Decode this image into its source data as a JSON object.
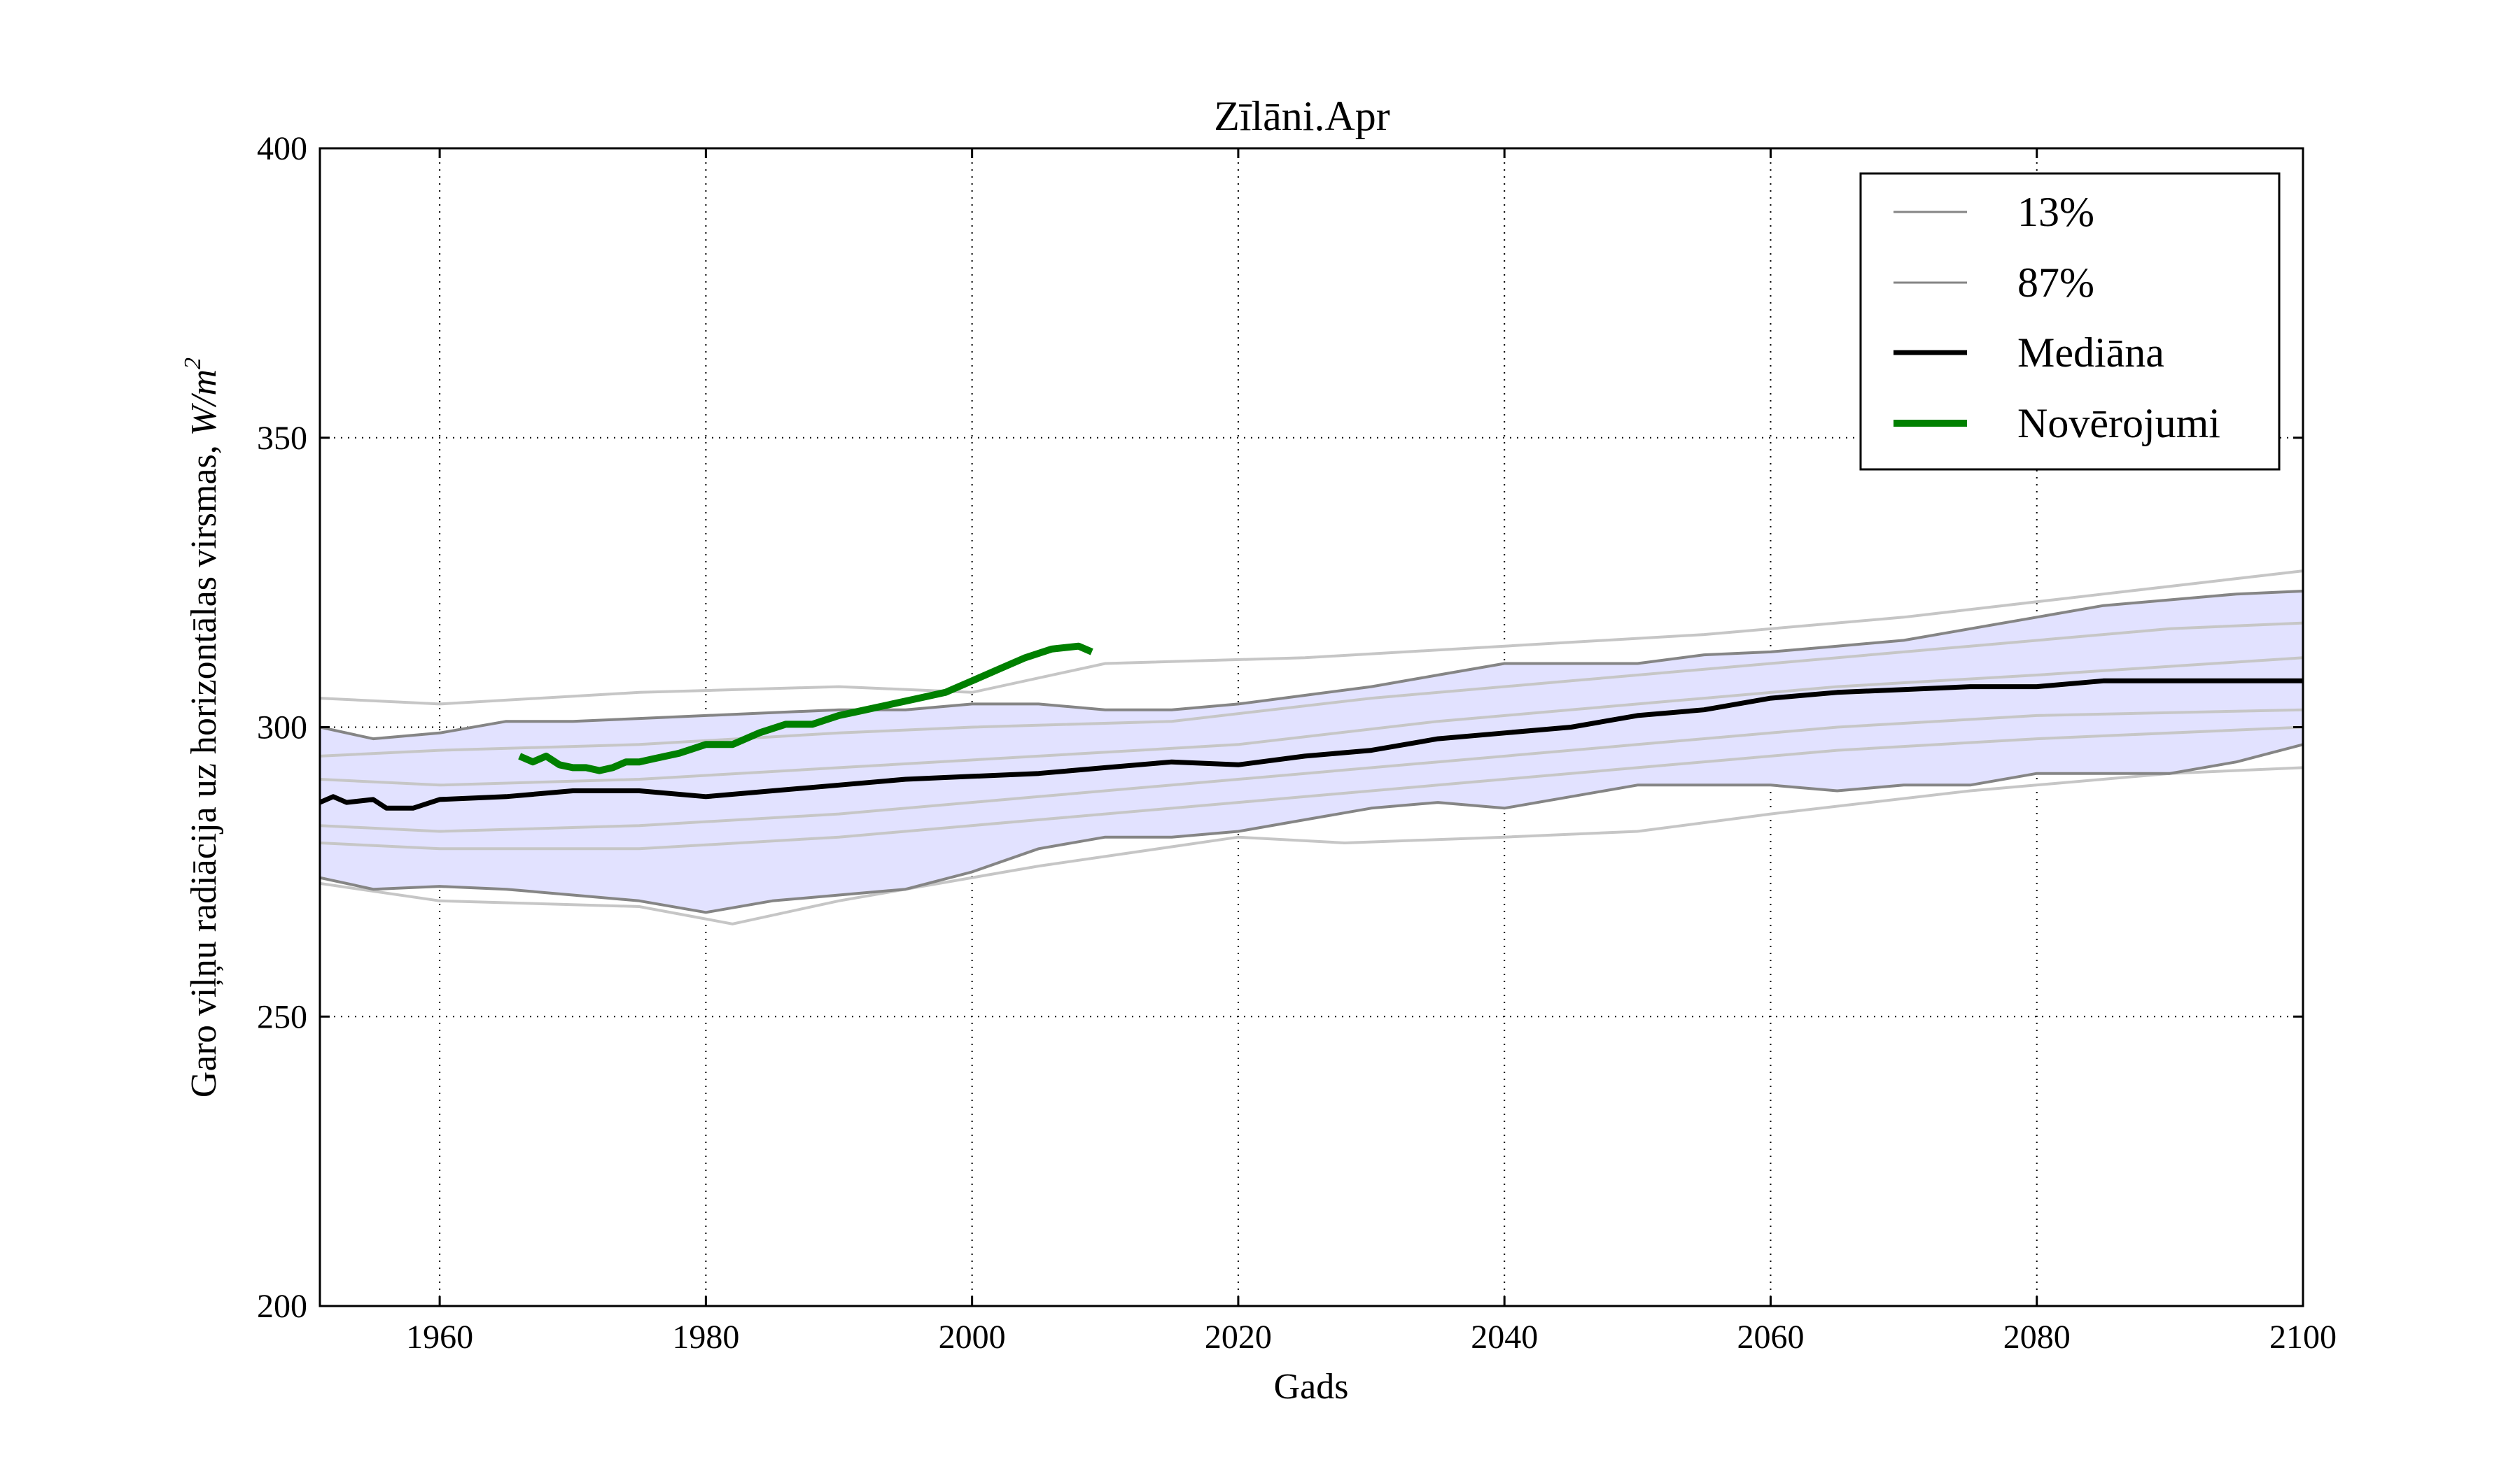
{
  "chart_data": {
    "type": "line",
    "title": "Zīlāni.Apr",
    "xlabel": "Gads",
    "ylabel_text": "Garo viļņu radiācija uz horizontālas virsmas, ",
    "ylabel_unit": "W/m",
    "ylabel_unit_power": "2",
    "xlim": [
      1951,
      2100
    ],
    "ylim": [
      200,
      400
    ],
    "xticks": [
      1960,
      1980,
      2000,
      2020,
      2040,
      2060,
      2080,
      2100
    ],
    "yticks": [
      200,
      250,
      300,
      350,
      400
    ],
    "grid": true,
    "legend_position": "top-right",
    "colors": {
      "band_fill": "#e2e2ff",
      "band_edge": "#858585",
      "ensemble": "#c6c6c6",
      "median": "#000000",
      "observations": "#008000"
    },
    "legend": [
      {
        "label": "13%",
        "style": "band_edge"
      },
      {
        "label": "87%",
        "style": "band_edge"
      },
      {
        "label": "Mediāna",
        "style": "median"
      },
      {
        "label": "Novērojumi",
        "style": "observations"
      }
    ],
    "series": [
      {
        "name": "13%",
        "x": [
          1951,
          1955,
          1960,
          1965,
          1970,
          1975,
          1980,
          1985,
          1990,
          1995,
          2000,
          2005,
          2010,
          2015,
          2020,
          2025,
          2030,
          2035,
          2040,
          2045,
          2050,
          2055,
          2060,
          2065,
          2070,
          2075,
          2080,
          2085,
          2090,
          2095,
          2100
        ],
        "values": [
          274,
          272,
          272.5,
          272,
          271,
          270,
          268,
          270,
          271,
          272,
          275,
          279,
          281,
          281,
          282,
          284,
          286,
          287,
          286,
          288,
          290,
          290,
          290,
          289,
          290,
          290,
          292,
          292,
          292,
          294,
          297
        ]
      },
      {
        "name": "87%",
        "x": [
          1951,
          1955,
          1960,
          1965,
          1970,
          1975,
          1980,
          1985,
          1990,
          1995,
          2000,
          2005,
          2010,
          2015,
          2020,
          2025,
          2030,
          2035,
          2040,
          2045,
          2050,
          2055,
          2060,
          2065,
          2070,
          2075,
          2080,
          2085,
          2090,
          2095,
          2100
        ],
        "values": [
          300,
          298,
          299,
          301,
          301,
          301.5,
          302,
          302.5,
          303,
          303,
          304,
          304,
          303,
          303,
          304,
          305.5,
          307,
          309,
          311,
          311,
          311,
          312.5,
          313,
          314,
          315,
          317,
          319,
          321,
          322,
          323,
          323.5
        ]
      },
      {
        "name": "Mediāna",
        "x": [
          1951,
          1952,
          1953,
          1955,
          1956,
          1958,
          1960,
          1965,
          1970,
          1975,
          1980,
          1985,
          1990,
          1995,
          2000,
          2005,
          2010,
          2015,
          2020,
          2025,
          2030,
          2035,
          2040,
          2045,
          2050,
          2055,
          2060,
          2065,
          2070,
          2075,
          2080,
          2085,
          2090,
          2095,
          2100
        ],
        "values": [
          287,
          288,
          287,
          287.5,
          286,
          286,
          287.5,
          288,
          289,
          289,
          288,
          289,
          290,
          291,
          291.5,
          292,
          293,
          294,
          293.5,
          295,
          296,
          298,
          299,
          300,
          302,
          303,
          305,
          306,
          306.5,
          307,
          307,
          308,
          308,
          308,
          308
        ]
      },
      {
        "name": "Novērojumi",
        "x": [
          1966,
          1967,
          1968,
          1969,
          1970,
          1971,
          1972,
          1973,
          1974,
          1975,
          1976,
          1978,
          1980,
          1982,
          1984,
          1986,
          1988,
          1990,
          1991,
          1992,
          1994,
          1996,
          1998,
          2000,
          2002,
          2004,
          2006,
          2008,
          2009
        ],
        "values": [
          295,
          294,
          295,
          293.5,
          293,
          293,
          292.5,
          293,
          294,
          294,
          294.5,
          295.5,
          297,
          297,
          299,
          300.5,
          300.5,
          302,
          302.5,
          303,
          304,
          305,
          306,
          308,
          310,
          312,
          313.5,
          314,
          313
        ]
      }
    ],
    "ensemble_members": [
      [
        [
          1951,
          305
        ],
        [
          1960,
          304
        ],
        [
          1975,
          306
        ],
        [
          1990,
          307
        ],
        [
          2000,
          306
        ],
        [
          2010,
          311
        ],
        [
          2025,
          312
        ],
        [
          2040,
          314
        ],
        [
          2055,
          316
        ],
        [
          2070,
          319
        ],
        [
          2085,
          323
        ],
        [
          2100,
          327
        ]
      ],
      [
        [
          1951,
          295
        ],
        [
          1960,
          296
        ],
        [
          1975,
          297
        ],
        [
          1990,
          299
        ],
        [
          2000,
          300
        ],
        [
          2015,
          301
        ],
        [
          2030,
          305
        ],
        [
          2045,
          308
        ],
        [
          2060,
          311
        ],
        [
          2075,
          314
        ],
        [
          2090,
          317
        ],
        [
          2100,
          318
        ]
      ],
      [
        [
          1951,
          291
        ],
        [
          1960,
          290
        ],
        [
          1975,
          291
        ],
        [
          1990,
          293
        ],
        [
          2005,
          295
        ],
        [
          2020,
          297
        ],
        [
          2035,
          301
        ],
        [
          2050,
          304
        ],
        [
          2065,
          307
        ],
        [
          2080,
          309
        ],
        [
          2100,
          312
        ]
      ],
      [
        [
          1951,
          283
        ],
        [
          1960,
          282
        ],
        [
          1975,
          283
        ],
        [
          1990,
          285
        ],
        [
          2005,
          288
        ],
        [
          2020,
          291
        ],
        [
          2035,
          294
        ],
        [
          2050,
          297
        ],
        [
          2065,
          300
        ],
        [
          2080,
          302
        ],
        [
          2100,
          303
        ]
      ],
      [
        [
          1951,
          280
        ],
        [
          1960,
          279
        ],
        [
          1975,
          279
        ],
        [
          1990,
          281
        ],
        [
          2005,
          284
        ],
        [
          2020,
          287
        ],
        [
          2035,
          290
        ],
        [
          2050,
          293
        ],
        [
          2065,
          296
        ],
        [
          2080,
          298
        ],
        [
          2100,
          300
        ]
      ],
      [
        [
          1951,
          273
        ],
        [
          1960,
          270
        ],
        [
          1975,
          269
        ],
        [
          1982,
          266
        ],
        [
          1990,
          270
        ],
        [
          2005,
          276
        ],
        [
          2020,
          281
        ],
        [
          2028,
          280
        ],
        [
          2040,
          281
        ],
        [
          2050,
          282
        ],
        [
          2060,
          285
        ],
        [
          2075,
          289
        ],
        [
          2090,
          292
        ],
        [
          2100,
          293
        ]
      ]
    ]
  }
}
